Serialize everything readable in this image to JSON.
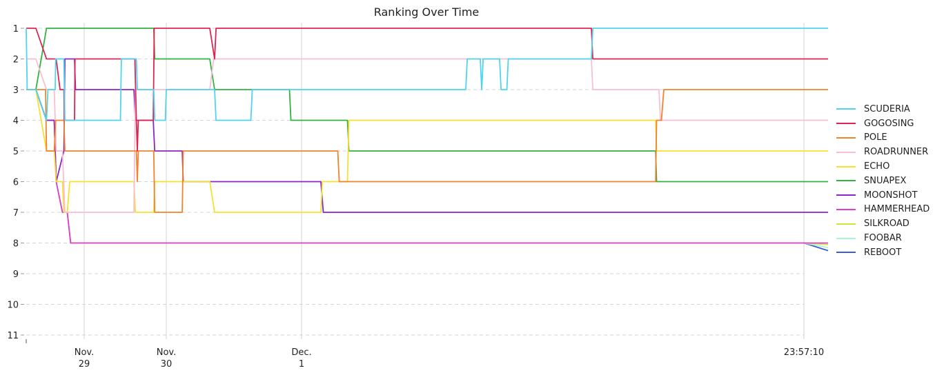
{
  "chart_data": {
    "type": "line",
    "title": "Ranking Over Time",
    "xlabel": "",
    "ylabel": "",
    "ylim": [
      1,
      11
    ],
    "y_inverted": true,
    "yticks": [
      1,
      2,
      3,
      4,
      5,
      6,
      7,
      8,
      9,
      10,
      11
    ],
    "grid": "horizontal dashed at ranks 1-11; vertical solid at labeled x ticks",
    "legend": "right",
    "xticks": [
      {
        "label_top": "Nov.",
        "label_bottom": "29"
      },
      {
        "label_top": "Nov.",
        "label_bottom": "30"
      },
      {
        "label_top": "Dec.",
        "label_bottom": "1"
      },
      {
        "label_top": "23:57:10",
        "label_bottom": ""
      }
    ],
    "x_tick_positions_hours": [
      12,
      29,
      57,
      161
    ],
    "xlim_hours": [
      0,
      166
    ],
    "series": [
      {
        "name": "SCUDERIA",
        "color": "#4dd4ee",
        "points": [
          [
            0,
            1
          ],
          [
            0.2,
            3
          ],
          [
            2,
            3
          ],
          [
            4.2,
            4
          ],
          [
            4.5,
            3
          ],
          [
            6,
            3
          ],
          [
            6.1,
            2
          ],
          [
            7.8,
            2
          ],
          [
            8,
            4
          ],
          [
            19.5,
            4
          ],
          [
            19.7,
            2
          ],
          [
            22.8,
            2
          ],
          [
            23,
            3
          ],
          [
            26.4,
            3
          ],
          [
            26.6,
            4
          ],
          [
            28.8,
            4
          ],
          [
            29,
            3
          ],
          [
            39,
            3
          ],
          [
            39.3,
            4
          ],
          [
            46.5,
            4
          ],
          [
            46.8,
            3
          ],
          [
            91,
            3
          ],
          [
            91.3,
            2
          ],
          [
            94,
            2
          ],
          [
            94.3,
            3
          ],
          [
            94.6,
            2
          ],
          [
            98,
            2
          ],
          [
            98.3,
            3
          ],
          [
            99.5,
            3
          ],
          [
            99.8,
            2
          ],
          [
            117,
            2
          ],
          [
            117.3,
            1
          ],
          [
            166,
            1
          ]
        ]
      },
      {
        "name": "GOGOSING",
        "color": "#e0234e",
        "points": [
          [
            0,
            1
          ],
          [
            2,
            1
          ],
          [
            4.2,
            2
          ],
          [
            6.2,
            2
          ],
          [
            7,
            3
          ],
          [
            7.8,
            3
          ],
          [
            7.9,
            4
          ],
          [
            10,
            4
          ],
          [
            10.1,
            2
          ],
          [
            22.5,
            2
          ],
          [
            22.8,
            4
          ],
          [
            23,
            5
          ],
          [
            23.2,
            4
          ],
          [
            26.3,
            4
          ],
          [
            26.5,
            1
          ],
          [
            38,
            1
          ],
          [
            39,
            2
          ],
          [
            39.3,
            1
          ],
          [
            117,
            1
          ],
          [
            117.3,
            2
          ],
          [
            166,
            2
          ]
        ]
      },
      {
        "name": "POLE",
        "color": "#f0832c",
        "points": [
          [
            0,
            3
          ],
          [
            2,
            3
          ],
          [
            4,
            3
          ],
          [
            4.2,
            5
          ],
          [
            5.8,
            5
          ],
          [
            6.1,
            4
          ],
          [
            7.8,
            4
          ],
          [
            8,
            5
          ],
          [
            22.8,
            5
          ],
          [
            23,
            6
          ],
          [
            23.2,
            5
          ],
          [
            26.4,
            5
          ],
          [
            26.6,
            7
          ],
          [
            32.3,
            7
          ],
          [
            32.5,
            5
          ],
          [
            64.5,
            5
          ],
          [
            64.8,
            6
          ],
          [
            130.3,
            6
          ],
          [
            130.5,
            4
          ],
          [
            131.5,
            4
          ],
          [
            132,
            3
          ],
          [
            166,
            3
          ]
        ]
      },
      {
        "name": "ROADRUNNER",
        "color": "#f7bfd3",
        "points": [
          [
            0,
            2
          ],
          [
            2,
            2
          ],
          [
            4.2,
            3
          ],
          [
            5.8,
            3
          ],
          [
            6.2,
            5
          ],
          [
            7.5,
            5
          ],
          [
            8,
            7
          ],
          [
            22.3,
            7
          ],
          [
            22.6,
            3
          ],
          [
            38,
            3
          ],
          [
            38.8,
            2
          ],
          [
            98,
            2
          ],
          [
            98.3,
            2
          ],
          [
            117,
            2
          ],
          [
            117.3,
            3
          ],
          [
            131,
            3
          ],
          [
            131.3,
            4
          ],
          [
            166,
            4
          ]
        ]
      },
      {
        "name": "ECHO",
        "color": "#f9e02f",
        "points": [
          [
            0,
            3
          ],
          [
            2,
            3
          ],
          [
            4.2,
            5
          ],
          [
            5.8,
            5
          ],
          [
            6.2,
            6
          ],
          [
            7.5,
            6
          ],
          [
            7.8,
            7
          ],
          [
            8.5,
            7
          ],
          [
            9,
            6
          ],
          [
            22.3,
            6
          ],
          [
            22.6,
            7
          ],
          [
            26.4,
            7
          ],
          [
            26.6,
            6
          ],
          [
            38,
            6
          ],
          [
            39,
            7
          ],
          [
            61,
            7
          ],
          [
            61.3,
            6
          ],
          [
            66.5,
            6
          ],
          [
            66.8,
            4
          ],
          [
            130.3,
            4
          ],
          [
            130.5,
            5
          ],
          [
            166,
            5
          ]
        ]
      },
      {
        "name": "SNUAPEX",
        "color": "#2fb33f",
        "points": [
          [
            0,
            3
          ],
          [
            2,
            3
          ],
          [
            4.2,
            1
          ],
          [
            26.4,
            1
          ],
          [
            26.6,
            2
          ],
          [
            38,
            2
          ],
          [
            39,
            3
          ],
          [
            54.5,
            3
          ],
          [
            54.8,
            4
          ],
          [
            66.5,
            4
          ],
          [
            66.8,
            5
          ],
          [
            130.3,
            5
          ],
          [
            130.5,
            6
          ],
          [
            166,
            6
          ]
        ]
      },
      {
        "name": "MOONSHOT",
        "color": "#8a24c6",
        "points": [
          [
            0,
            3
          ],
          [
            2,
            3
          ],
          [
            4.2,
            4
          ],
          [
            5.8,
            4
          ],
          [
            6.2,
            6
          ],
          [
            7.8,
            5
          ],
          [
            8,
            2
          ],
          [
            10,
            2
          ],
          [
            10.2,
            3
          ],
          [
            22.3,
            3
          ],
          [
            22.6,
            4
          ],
          [
            26.3,
            4
          ],
          [
            26.6,
            5
          ],
          [
            32.3,
            5
          ],
          [
            32.5,
            6
          ],
          [
            61,
            6
          ],
          [
            61.5,
            7
          ],
          [
            166,
            7
          ]
        ]
      },
      {
        "name": "HAMMERHEAD",
        "color": "#df3ed6",
        "points": [
          [
            0,
            3
          ],
          [
            2,
            3
          ],
          [
            4.2,
            4
          ],
          [
            5.8,
            4
          ],
          [
            6.2,
            6
          ],
          [
            7.5,
            7
          ],
          [
            8.5,
            7
          ],
          [
            9.2,
            8
          ],
          [
            166,
            8
          ]
        ]
      },
      {
        "name": "SILKROAD",
        "color": "#c5e83a",
        "points": [
          [
            0,
            3
          ],
          [
            2,
            3
          ],
          [
            4.2,
            4
          ],
          [
            5.8,
            4
          ],
          [
            6.2,
            6
          ],
          [
            7.5,
            7
          ],
          [
            8.5,
            7
          ],
          [
            9.2,
            8
          ],
          [
            161,
            8
          ],
          [
            166,
            8.05
          ]
        ]
      },
      {
        "name": "FOOBAR",
        "color": "#a9f5cc",
        "points": [
          [
            0,
            3
          ],
          [
            2,
            3
          ],
          [
            4.2,
            4
          ],
          [
            5.8,
            4
          ],
          [
            6.2,
            6
          ],
          [
            7.5,
            7
          ],
          [
            8.5,
            7
          ],
          [
            9.2,
            8
          ],
          [
            161,
            8
          ],
          [
            166,
            8.15
          ]
        ]
      },
      {
        "name": "REBOOT",
        "color": "#3d5bd3",
        "points": [
          [
            0,
            3
          ],
          [
            2,
            3
          ],
          [
            4.2,
            4
          ],
          [
            5.8,
            4
          ],
          [
            6.2,
            6
          ],
          [
            7.5,
            7
          ],
          [
            8.5,
            7
          ],
          [
            9.2,
            8
          ],
          [
            161,
            8
          ],
          [
            166,
            8.25
          ]
        ]
      }
    ]
  }
}
